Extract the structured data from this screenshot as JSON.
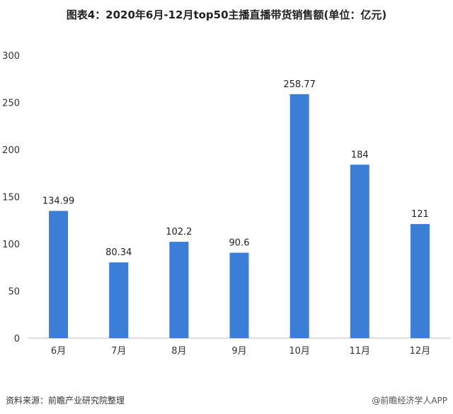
{
  "title": "图表4：2020年6月-12月top50主播直播带货销售额(单位：亿元)",
  "source": "资料来源：前瞻产业研究院整理",
  "brand": "@前瞻经济学人APP",
  "colors": {
    "bar": "#3a7fd5",
    "grid": "#d9d9d9",
    "axis": "#bfbfbf"
  },
  "chart_data": {
    "type": "bar",
    "categories": [
      "6月",
      "7月",
      "8月",
      "9月",
      "10月",
      "11月",
      "12月"
    ],
    "values": [
      134.99,
      80.34,
      102.2,
      90.6,
      258.77,
      184,
      121
    ],
    "value_labels": [
      "134.99",
      "80.34",
      "102.2",
      "90.6",
      "258.77",
      "184",
      "121"
    ],
    "ylim": [
      0,
      300
    ],
    "yticks": [
      0,
      50,
      100,
      150,
      200,
      250,
      300
    ],
    "grid": false,
    "title": "图表4：2020年6月-12月top50主播直播带货销售额(单位：亿元)"
  }
}
